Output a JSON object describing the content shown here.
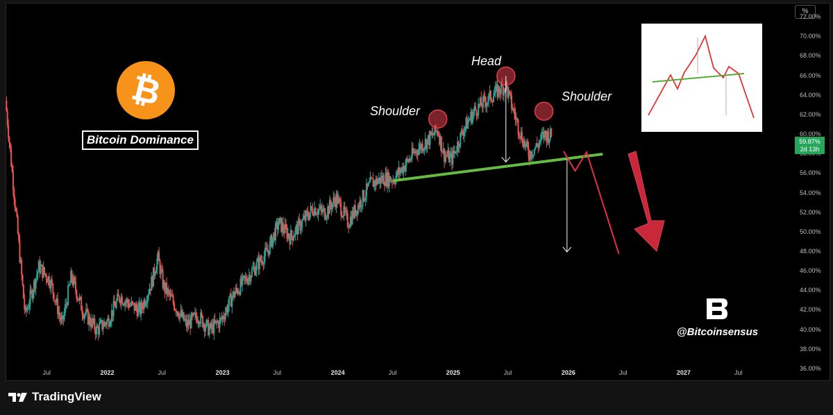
{
  "chart_data": {
    "type": "candlestick",
    "title": "Bitcoin Dominance",
    "y_unit": "%",
    "ylim": [
      35,
      73.5
    ],
    "y_ticks": [
      "36.00%",
      "38.00%",
      "40.00%",
      "42.00%",
      "44.00%",
      "46.00%",
      "48.00%",
      "50.00%",
      "52.00%",
      "54.00%",
      "56.00%",
      "58.00%",
      "60.00%",
      "62.00%",
      "64.00%",
      "66.00%",
      "68.00%",
      "70.00%",
      "72.00%"
    ],
    "x_ticks": [
      {
        "label": "Jul",
        "t": 2021.5,
        "year": false
      },
      {
        "label": "2022",
        "t": 2022.0,
        "year": true
      },
      {
        "label": "Jul",
        "t": 2022.5,
        "year": false
      },
      {
        "label": "2023",
        "t": 2023.0,
        "year": true
      },
      {
        "label": "Jul",
        "t": 2023.5,
        "year": false
      },
      {
        "label": "2024",
        "t": 2024.0,
        "year": true
      },
      {
        "label": "Jul",
        "t": 2024.5,
        "year": false
      },
      {
        "label": "2025",
        "t": 2025.0,
        "year": true
      },
      {
        "label": "Jul",
        "t": 2025.5,
        "year": false
      },
      {
        "label": "2026",
        "t": 2026.0,
        "year": true
      },
      {
        "label": "Jul",
        "t": 2026.5,
        "year": false
      },
      {
        "label": "2027",
        "t": 2027.0,
        "year": true
      },
      {
        "label": "Jul",
        "t": 2027.5,
        "year": false
      }
    ],
    "xlim": [
      2021.13,
      2027.97
    ],
    "close_path": [
      [
        2021.13,
        63.5
      ],
      [
        2021.22,
        52.0
      ],
      [
        2021.3,
        41.5
      ],
      [
        2021.42,
        46.5
      ],
      [
        2021.52,
        45.0
      ],
      [
        2021.62,
        40.5
      ],
      [
        2021.7,
        45.5
      ],
      [
        2021.8,
        42.0
      ],
      [
        2021.92,
        40.0
      ],
      [
        2022.02,
        41.0
      ],
      [
        2022.12,
        43.5
      ],
      [
        2022.22,
        42.5
      ],
      [
        2022.3,
        42.0
      ],
      [
        2022.4,
        45.0
      ],
      [
        2022.45,
        47.5
      ],
      [
        2022.5,
        44.5
      ],
      [
        2022.6,
        42.5
      ],
      [
        2022.7,
        40.5
      ],
      [
        2022.8,
        41.5
      ],
      [
        2022.9,
        40.0
      ],
      [
        2023.0,
        41.0
      ],
      [
        2023.1,
        43.5
      ],
      [
        2023.2,
        45.0
      ],
      [
        2023.3,
        46.5
      ],
      [
        2023.4,
        48.0
      ],
      [
        2023.5,
        51.0
      ],
      [
        2023.6,
        49.5
      ],
      [
        2023.7,
        51.0
      ],
      [
        2023.8,
        52.5
      ],
      [
        2023.9,
        52.0
      ],
      [
        2024.0,
        53.5
      ],
      [
        2024.1,
        51.0
      ],
      [
        2024.2,
        53.0
      ],
      [
        2024.3,
        55.0
      ],
      [
        2024.4,
        55.5
      ],
      [
        2024.5,
        55.5
      ],
      [
        2024.6,
        57.0
      ],
      [
        2024.7,
        58.5
      ],
      [
        2024.8,
        59.5
      ],
      [
        2024.88,
        60.5
      ],
      [
        2024.93,
        58.0
      ],
      [
        2025.0,
        57.5
      ],
      [
        2025.1,
        60.5
      ],
      [
        2025.2,
        62.5
      ],
      [
        2025.3,
        63.5
      ],
      [
        2025.4,
        64.5
      ],
      [
        2025.47,
        65.0
      ],
      [
        2025.52,
        63.0
      ],
      [
        2025.6,
        60.0
      ],
      [
        2025.67,
        58.0
      ],
      [
        2025.75,
        59.0
      ],
      [
        2025.8,
        60.0
      ],
      [
        2025.87,
        59.9
      ]
    ],
    "last_value": "59.87%",
    "countdown": "2d 13h",
    "annotations": [
      "Shoulder",
      "Head",
      "Shoulder"
    ],
    "neckline": {
      "from": [
        2024.5,
        55.3
      ],
      "to": [
        2026.3,
        58.0
      ]
    },
    "head_drop_arrow": {
      "t": 2025.47,
      "from": 66.0,
      "to": 57.2
    },
    "projection_arrow": {
      "t": 2026.0,
      "from": 57.5,
      "to": 48.0
    },
    "projected_path": [
      [
        2025.97,
        58.3
      ],
      [
        2026.07,
        56.3
      ],
      [
        2026.17,
        58.2
      ],
      [
        2026.45,
        47.8
      ]
    ],
    "big_arrow_direction": "down",
    "colors": {
      "up": "#26a69a",
      "down": "#ef5350",
      "neckline": "#66bb44",
      "projection": "#e53040",
      "circle": "#e0404a"
    }
  },
  "branding": {
    "handle": "@Bitcoinsensus",
    "platform": "TradingView",
    "coin_icon": "bitcoin-icon",
    "brand_icon": "bitcoinsensus-b-icon"
  }
}
